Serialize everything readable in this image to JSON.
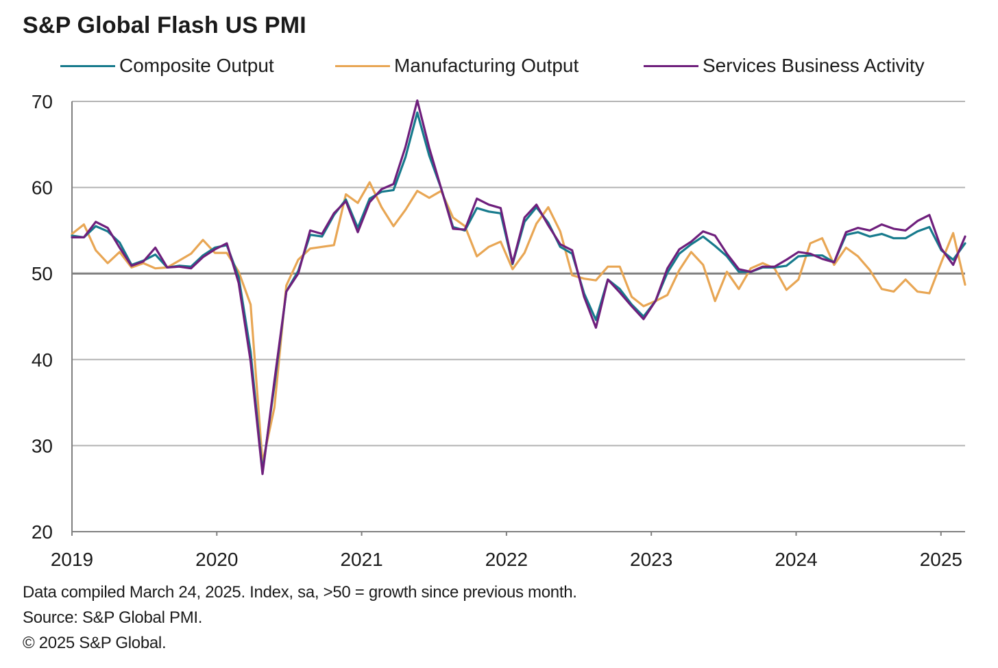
{
  "title": "S&P Global Flash US PMI",
  "footer": {
    "line1": "Data compiled March 24, 2025. Index,  sa, >50 = growth since previous month.",
    "line2": "Source: S&P Global PMI.",
    "line3": "© 2025 S&P Global."
  },
  "colors": {
    "composite": "#167a8c",
    "manufacturing": "#e8a654",
    "services": "#6e1f7c",
    "grid": "#b3b3b3",
    "axis": "#7f7f7f",
    "reference": "#7f7f7f"
  },
  "chart_data": {
    "type": "line",
    "title": "S&P Global Flash US PMI",
    "xlabel": "",
    "ylabel": "",
    "ylim": [
      20,
      70
    ],
    "yticks": [
      20,
      30,
      40,
      50,
      60,
      70
    ],
    "x_tick_labels": [
      "2019",
      "2020",
      "2021",
      "2022",
      "2023",
      "2024",
      "2025"
    ],
    "x_start": "2019-01",
    "x_end": "2025-03",
    "grid": true,
    "legend_position": "top",
    "reference_line": 50,
    "series": [
      {
        "name": "Composite Output",
        "color_key": "composite",
        "values": [
          54.4,
          54.2,
          55.5,
          54.9,
          53.6,
          51.0,
          51.5,
          52.2,
          50.7,
          50.9,
          50.8,
          52.1,
          53.0,
          53.3,
          49.6,
          40.9,
          27.0,
          37.0,
          47.9,
          50.3,
          54.5,
          54.3,
          56.8,
          58.6,
          55.3,
          58.7,
          59.5,
          59.7,
          63.5,
          68.7,
          63.7,
          59.9,
          55.4,
          55.0,
          57.6,
          57.2,
          57.0,
          51.1,
          56.0,
          57.7,
          55.9,
          53.1,
          52.3,
          47.7,
          44.6,
          49.3,
          48.2,
          46.4,
          45.0,
          46.8,
          50.1,
          52.3,
          53.4,
          54.3,
          53.2,
          52.0,
          50.2,
          50.2,
          50.7,
          50.7,
          50.9,
          52.0,
          52.1,
          52.1,
          51.3,
          54.5,
          54.8,
          54.3,
          54.6,
          54.1,
          54.1,
          54.9,
          55.4,
          52.7,
          51.6,
          53.5
        ]
      },
      {
        "name": "Manufacturing Output",
        "color_key": "manufacturing",
        "values": [
          54.6,
          55.7,
          52.7,
          51.2,
          52.5,
          50.7,
          51.2,
          50.6,
          50.7,
          51.5,
          52.3,
          53.9,
          52.4,
          52.4,
          50.2,
          46.4,
          28.0,
          34.4,
          48.6,
          51.6,
          52.9,
          53.1,
          53.3,
          59.2,
          58.2,
          60.6,
          57.7,
          55.5,
          57.4,
          59.6,
          58.8,
          59.6,
          56.5,
          55.5,
          52.0,
          53.1,
          53.7,
          50.5,
          52.4,
          55.8,
          57.7,
          54.9,
          49.8,
          49.4,
          49.2,
          50.8,
          50.8,
          47.3,
          46.2,
          46.8,
          47.5,
          50.4,
          52.5,
          51.0,
          46.8,
          50.2,
          48.2,
          50.6,
          51.2,
          50.6,
          48.1,
          49.3,
          53.5,
          54.1,
          51.0,
          53.0,
          52.0,
          50.4,
          48.2,
          47.9,
          49.3,
          47.9,
          47.7,
          51.3,
          54.7,
          48.7
        ]
      },
      {
        "name": "Services Business Activity",
        "color_key": "services",
        "values": [
          54.2,
          54.2,
          56.0,
          55.3,
          53.0,
          50.9,
          51.4,
          53.0,
          50.7,
          50.8,
          50.6,
          51.9,
          52.8,
          53.5,
          48.9,
          39.8,
          26.7,
          37.5,
          47.9,
          50.0,
          55.0,
          54.6,
          57.0,
          58.4,
          54.8,
          58.3,
          59.8,
          60.4,
          64.7,
          70.1,
          64.6,
          59.9,
          55.2,
          55.1,
          58.7,
          58.0,
          57.6,
          51.2,
          56.5,
          58.0,
          55.6,
          53.4,
          52.7,
          47.3,
          43.7,
          49.3,
          47.8,
          46.2,
          44.7,
          46.8,
          50.6,
          52.8,
          53.7,
          54.9,
          54.4,
          52.3,
          50.5,
          50.2,
          50.8,
          50.8,
          51.6,
          52.5,
          52.3,
          51.7,
          51.3,
          54.8,
          55.3,
          55.0,
          55.7,
          55.2,
          55.0,
          56.1,
          56.8,
          52.9,
          51.0,
          54.3
        ]
      }
    ]
  }
}
